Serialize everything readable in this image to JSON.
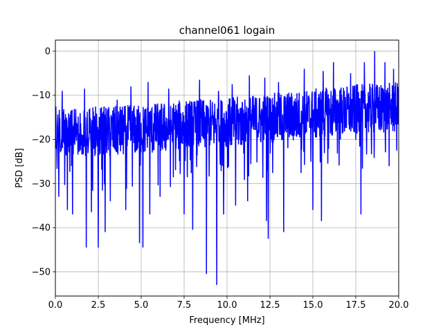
{
  "chart_data": {
    "type": "line",
    "title": "channel061 logain",
    "xlabel": "Frequency [MHz]",
    "ylabel": "PSD [dB]",
    "xlim": [
      0,
      20
    ],
    "ylim": [
      -55.5,
      2.5
    ],
    "x_ticks": [
      0,
      2.5,
      5,
      7.5,
      10,
      12.5,
      15,
      17.5,
      20
    ],
    "x_tick_labels": [
      "0.0",
      "2.5",
      "5.0",
      "7.5",
      "10.0",
      "12.5",
      "15.0",
      "17.5",
      "20.0"
    ],
    "y_ticks": [
      0,
      -10,
      -20,
      -30,
      -40,
      -50
    ],
    "y_tick_labels": [
      "0",
      "−10",
      "−20",
      "−30",
      "−40",
      "−50"
    ],
    "grid": true,
    "series": [
      {
        "color": "#0000ff",
        "trend": [
          [
            0,
            -18.5
          ],
          [
            2.5,
            -18.5
          ],
          [
            5,
            -18
          ],
          [
            7.5,
            -17
          ],
          [
            10,
            -16.5
          ],
          [
            12.5,
            -15.5
          ],
          [
            15,
            -14.5
          ],
          [
            17.5,
            -13.5
          ],
          [
            20,
            -13
          ]
        ],
        "noise_amplitude": 6,
        "peaks": [
          [
            0.4,
            -9
          ],
          [
            1.7,
            -8.5
          ],
          [
            3.6,
            -11
          ],
          [
            4.4,
            -8
          ],
          [
            5.4,
            -7
          ],
          [
            6.6,
            -8.5
          ],
          [
            8.4,
            -6.5
          ],
          [
            9.5,
            -9
          ],
          [
            10.3,
            -7.5
          ],
          [
            11.3,
            -5.5
          ],
          [
            12.2,
            -6
          ],
          [
            13.0,
            -7
          ],
          [
            14.5,
            -4
          ],
          [
            15.6,
            -4.5
          ],
          [
            16.2,
            -2.5
          ],
          [
            17.2,
            -5
          ],
          [
            18.0,
            -2.5
          ],
          [
            18.6,
            0
          ],
          [
            19.2,
            -2.5
          ],
          [
            19.7,
            -4
          ]
        ],
        "dips": [
          [
            0.2,
            -33
          ],
          [
            0.7,
            -36
          ],
          [
            1.0,
            -37
          ],
          [
            1.8,
            -44.5
          ],
          [
            2.1,
            -36.5
          ],
          [
            2.5,
            -44.5
          ],
          [
            2.9,
            -41
          ],
          [
            3.2,
            -34
          ],
          [
            4.1,
            -36
          ],
          [
            4.9,
            -43.5
          ],
          [
            5.1,
            -44.5
          ],
          [
            5.5,
            -37
          ],
          [
            6.1,
            -33
          ],
          [
            7.5,
            -37
          ],
          [
            8.0,
            -40.5
          ],
          [
            8.8,
            -50.5
          ],
          [
            9.4,
            -53
          ],
          [
            9.8,
            -37
          ],
          [
            10.5,
            -35
          ],
          [
            11.2,
            -34
          ],
          [
            12.3,
            -38.5
          ],
          [
            12.4,
            -42.5
          ],
          [
            13.3,
            -41
          ],
          [
            15.0,
            -36
          ],
          [
            15.5,
            -38.5
          ],
          [
            17.8,
            -37
          ]
        ]
      }
    ]
  }
}
